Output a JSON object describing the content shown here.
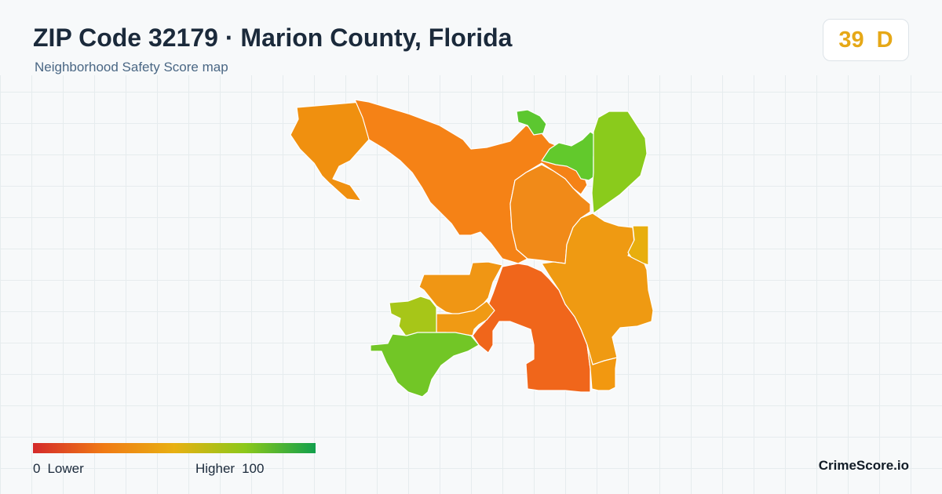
{
  "header": {
    "title": "ZIP Code 32179 · Marion County, Florida",
    "subtitle": "Neighborhood Safety Score map"
  },
  "score": {
    "value": "39",
    "grade": "D",
    "color": "#e6a817"
  },
  "legend": {
    "min_value": "0",
    "min_label": "Lower",
    "max_label": "Higher",
    "max_value": "100",
    "colors": [
      "#d42a2a",
      "#f07a14",
      "#e8b012",
      "#8cc81a",
      "#12a04c"
    ]
  },
  "map": {
    "region_colors": {
      "north-west": "#f0900f",
      "north-central": "#f58216",
      "north-mid": "#f18a18",
      "north-east-green": "#62c92c",
      "north-east-top": "#5cc730",
      "north-east-strip": "#8acb1c",
      "east-central": "#ef9a12",
      "east-edge": "#e8ae0e",
      "center-red": "#f0661b",
      "center-west": "#f09614",
      "west-small": "#f09a14",
      "west-yellowgreen": "#a7c618",
      "south-west-green": "#72c626",
      "south-strip": "#f29810"
    }
  },
  "brand": {
    "name": "CrimeScore.io"
  }
}
